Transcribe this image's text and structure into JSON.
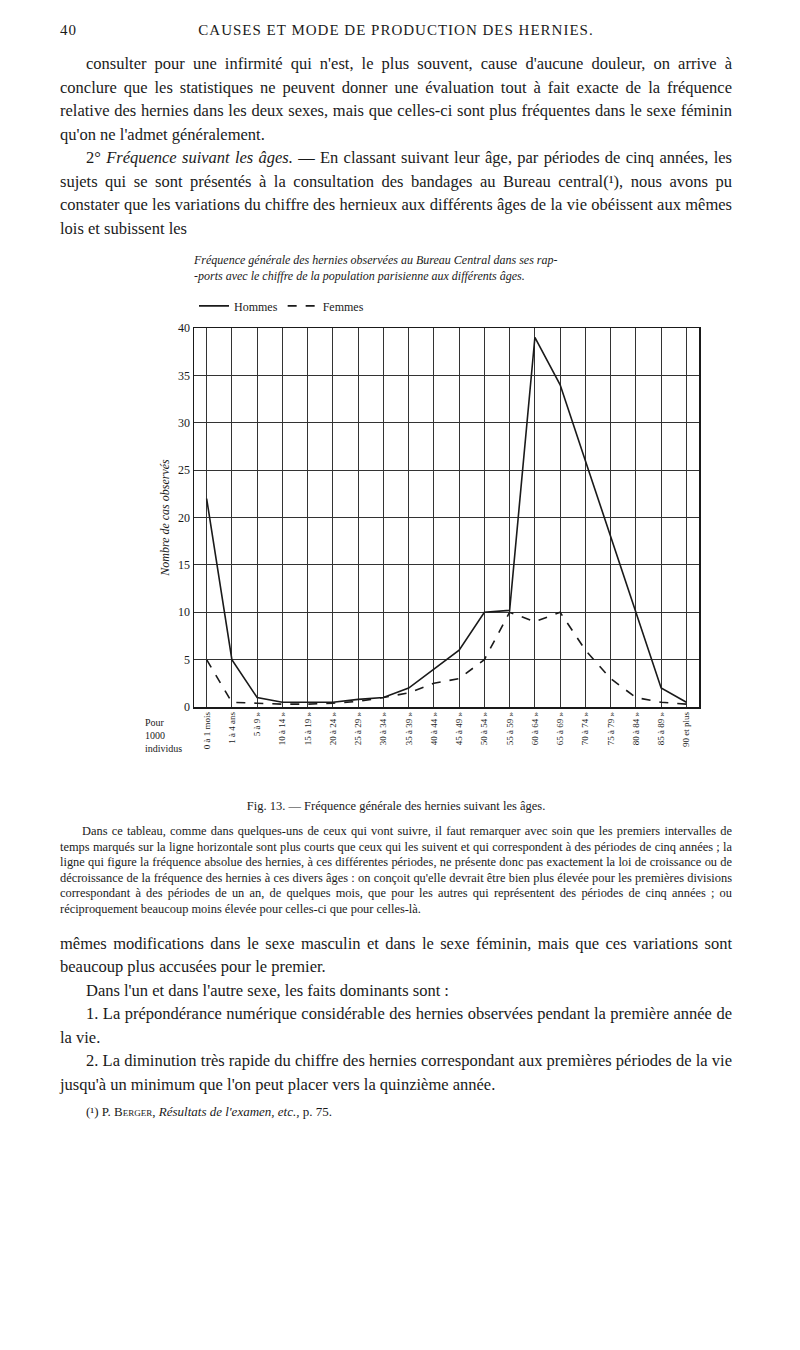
{
  "header": {
    "page_number": "40",
    "running_title": "CAUSES ET MODE DE PRODUCTION DES HERNIES."
  },
  "paragraphs_before": [
    {
      "text": "consulter pour une infirmité qui n'est, le plus souvent, cause d'aucune douleur, on arrive à conclure que les statistiques ne peuvent donner une évaluation tout à fait exacte de la fréquence relative des hernies dans les deux sexes, mais que celles-ci sont plus fréquentes dans le sexe féminin qu'on ne l'admet généralement."
    },
    {
      "lead": "2°",
      "heading": "Fréquence suivant les âges.",
      "text": "— En classant suivant leur âge, par périodes de cinq années, les sujets qui se sont présentés à la consultation des bandages au Bureau central(¹), nous avons pu constater que les variations du chiffre des hernieux aux différents âges de la vie obéissent aux mêmes lois et subissent les"
    }
  ],
  "chart_data": {
    "type": "line",
    "title": [
      "Fréquence générale des hernies observées au Bureau Central dans ses rap-",
      "-ports avec le chiffre de la population parisienne aux différents âges."
    ],
    "y_label": "Nombre de cas observés",
    "annotation": [
      "Pour",
      "1000",
      "individus"
    ],
    "categories": [
      "0 à 1 mois",
      "1 à 4 ans",
      "5 à 9 »",
      "10 à 14 »",
      "15 à 19 »",
      "20 à 24 »",
      "25 à 29 »",
      "30 à 34 »",
      "35 à 39 »",
      "40 à 44 »",
      "45 à 49 »",
      "50 à 54 »",
      "55 à 59 »",
      "60 à 64 »",
      "65 à 69 »",
      "70 à 74 »",
      "75 à 79 »",
      "80 à 84 »",
      "85 à 89 »",
      "90 et plus"
    ],
    "series": [
      {
        "name": "Hommes",
        "color": "#1a1a1a",
        "line_style": "solid",
        "values": [
          22,
          5,
          1,
          0.5,
          0.5,
          0.5,
          0.8,
          1,
          2,
          4,
          6,
          10,
          10.2,
          39,
          34,
          26,
          18,
          10,
          2,
          0.5
        ]
      },
      {
        "name": "Femmes",
        "color": "#1a1a1a",
        "line_style": "dash",
        "values": [
          5,
          0.5,
          0.4,
          0.3,
          0.3,
          0.4,
          0.6,
          1,
          1.5,
          2.5,
          3,
          5,
          10,
          9,
          10,
          6,
          3,
          1,
          0.5,
          0.3
        ]
      }
    ],
    "ylim": [
      0,
      40
    ],
    "yticks": [
      0,
      5,
      10,
      15,
      20,
      25,
      30,
      35,
      40
    ],
    "grid": true,
    "legend": "top"
  },
  "caption": "Fig. 13. — Fréquence générale des hernies suivant les âges.",
  "note": "Dans ce tableau, comme dans quelques-uns de ceux qui vont suivre, il faut remarquer avec soin que les premiers intervalles de temps marqués sur la ligne horizontale sont plus courts que ceux qui les suivent et qui correspondent à des périodes de cinq années ; la ligne qui figure la fréquence absolue des hernies, à ces différentes périodes, ne présente donc pas exactement la loi de croissance ou de décroissance de la fréquence des hernies à ces divers âges : on conçoit qu'elle devrait être bien plus élevée pour les premières divisions correspondant à des périodes de un an, de quelques mois, que pour les autres qui représentent des périodes de cinq années ; ou réciproquement beaucoup moins élevée pour celles-ci que pour celles-là.",
  "paragraphs_after": [
    {
      "continued": true,
      "text": "mêmes modifications dans le sexe masculin et dans le sexe féminin, mais que ces variations sont beaucoup plus accusées pour le premier."
    },
    {
      "text": "Dans l'un et dans l'autre sexe, les faits dominants sont :"
    },
    {
      "text": "1. La prépondérance numérique considérable des hernies observées pendant la première année de la vie."
    },
    {
      "text": "2. La diminution très rapide du chiffre des hernies correspondant aux premières périodes de la vie jusqu'à un minimum que l'on peut placer vers la quinzième année."
    }
  ],
  "footnote": {
    "marker": "(¹)",
    "author": "P. Berger,",
    "work": "Résultats de l'examen, etc.,",
    "page": "p. 75."
  }
}
